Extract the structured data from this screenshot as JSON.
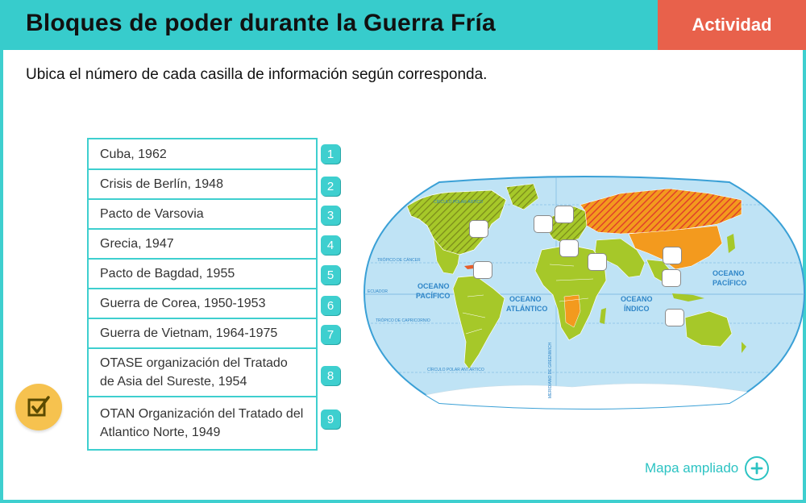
{
  "header": {
    "title": "Bloques de poder durante la Guerra Fría",
    "tab_label": "Actividad"
  },
  "instruction": "Ubica el número de cada casilla de información según corresponda.",
  "items": [
    {
      "text": "Cuba, 1962",
      "number": "1"
    },
    {
      "text": "Crisis de Berlín, 1948",
      "number": "2"
    },
    {
      "text": "Pacto de Varsovia",
      "number": "3"
    },
    {
      "text": "Grecia, 1947",
      "number": "4"
    },
    {
      "text": "Pacto de Bagdad, 1955",
      "number": "5"
    },
    {
      "text": "Guerra de Corea, 1950-1953",
      "number": "6"
    },
    {
      "text": "Guerra de Vietnam, 1964-1975",
      "number": "7"
    },
    {
      "text": "OTASE organización del Tratado de Asia del Sureste, 1954",
      "number": "8"
    },
    {
      "text": "OTAN Organización del Tratado del Atlantico Norte, 1949",
      "number": "9"
    }
  ],
  "map": {
    "ocean_pacific_1": "OCEANO",
    "ocean_pacific_2": "PACÍFICO",
    "ocean_atlantic_1": "OCEANO",
    "ocean_atlantic_2": "ATLÁNTICO",
    "ocean_indian_1": "OCEANO",
    "ocean_indian_2": "ÍNDICO",
    "ocean_pacific_east_1": "OCEANO",
    "ocean_pacific_east_2": "PACÍFICO",
    "tropic_cancer": "TRÓPICO DE CÁNCER",
    "equator": "ECUADOR",
    "tropic_capricorn": "TRÓPICO DE CAPRICORNIO",
    "antarctic_circle": "CÍRCULO POLAR ANTÁRTICO",
    "arctic_circle": "CÍRCULO POLAR ÁRTICO",
    "greenwich": "MERIDIANO DE GREENWICH"
  },
  "map_link": "Mapa ampliado",
  "colors": {
    "header": "#37cccc",
    "activity_tab": "#e8614b",
    "accent": "#3ecfcf",
    "check_button": "#f6c24f",
    "ocean": "#bfe3f5",
    "land_green": "#a6c829",
    "land_orange": "#f39a1e",
    "soviet_red": "#e65d2a"
  }
}
